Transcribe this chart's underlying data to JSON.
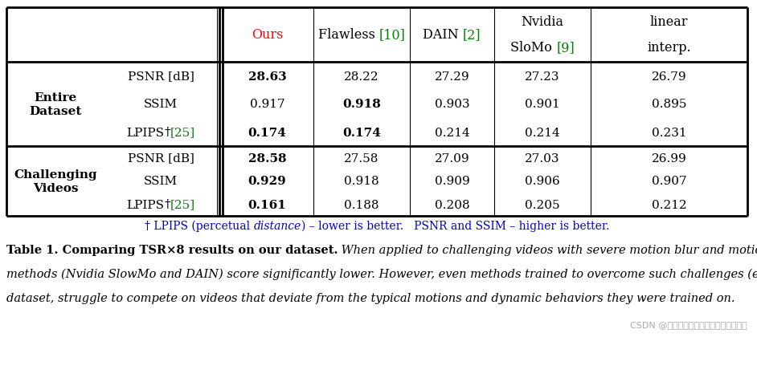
{
  "fig_width": 9.42,
  "fig_height": 4.77,
  "bg_color": "#ffffff",
  "section1_label": "Entire\nDataset",
  "section2_label": "Challenging\nVideos",
  "metrics": [
    "PSNR [dB]",
    "SSIM",
    "LPIPS"
  ],
  "section1_data": [
    [
      "28.63",
      "28.22",
      "27.29",
      "27.23",
      "26.79"
    ],
    [
      "0.917",
      "0.918",
      "0.903",
      "0.901",
      "0.895"
    ],
    [
      "0.174",
      "0.174",
      "0.214",
      "0.214",
      "0.231"
    ]
  ],
  "section1_bold": [
    [
      true,
      false,
      false,
      false,
      false
    ],
    [
      false,
      true,
      false,
      false,
      false
    ],
    [
      true,
      true,
      false,
      false,
      false
    ]
  ],
  "section2_data": [
    [
      "28.58",
      "27.58",
      "27.09",
      "27.03",
      "26.99"
    ],
    [
      "0.929",
      "0.918",
      "0.909",
      "0.906",
      "0.907"
    ],
    [
      "0.161",
      "0.188",
      "0.208",
      "0.205",
      "0.212"
    ]
  ],
  "section2_bold": [
    [
      true,
      false,
      false,
      false,
      false
    ],
    [
      true,
      false,
      false,
      false,
      false
    ],
    [
      true,
      false,
      false,
      false,
      false
    ]
  ],
  "caption_bold": "Table 1. Comparing TSR×8 results on our dataset.",
  "caption_italic_lines": [
    "When applied to challenging videos with severe motion blur and motion aliasing, sophisticated frame upsampling",
    "methods (Nvidia SlowMo and DAIN) score significantly lower. However, even methods trained to overcome such challenges (e.g., Flawless), but were pre-trained on an external",
    "dataset, struggle to compete on videos that deviate from the typical motions and dynamic behaviors they were trained on."
  ],
  "caption_italic": "When applied to challenging videos with severe motion blur and motion aliasing, sophisticated frame upsampling methods (Nvidia SlowMo and DAIN) score significantly lower. However, even methods trained to overcome such challenges (e.g., Flawless), but were pre-trained on an external dataset, struggle to compete on videos that deviate from the typical motions and dynamic behaviors they were trained on.",
  "watermark": "CSDN @人工智能大模型讲师培训咍诶叶梓",
  "green_color": "#008000",
  "red_color": "#ff0000",
  "blue_color": "#0000cd"
}
